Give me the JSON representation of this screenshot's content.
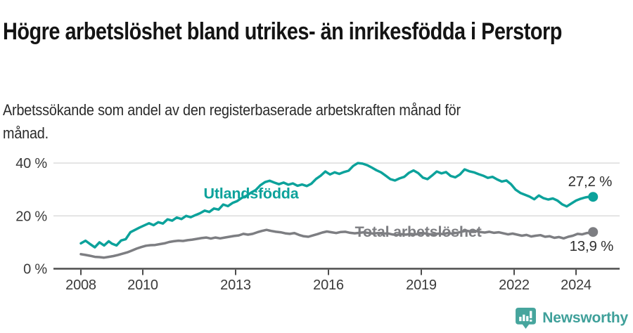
{
  "footer": {
    "brand": "Newsworthy"
  },
  "colors": {
    "foreign_born": "#0ca29b",
    "total": "#7d7e82",
    "grid": "#d9d9d9",
    "axis": "#4d4d4d",
    "axis_text": "#3a3a3a",
    "annotation_text": "#2e2e2e",
    "brand": "#3fa09a"
  },
  "chart_data": {
    "type": "line",
    "title": "Högre arbetslöshet bland utrikes- än inrikesfödda i Perstorp",
    "subtitle": "Arbetssökande som andel av den registerbaserade arbetskraften månad för månad.",
    "xlabel": "",
    "ylabel": "",
    "grid": "horizontal-only",
    "legend_position": "inline-labels",
    "x_axis_range": [
      2007.1,
      2025.4
    ],
    "y_axis_range": [
      0,
      43
    ],
    "x_ticks": [
      2008,
      2010,
      2013,
      2016,
      2019,
      2022,
      2024
    ],
    "y_ticks": [
      {
        "value": 0,
        "label": "0 %"
      },
      {
        "value": 20,
        "label": "20 %"
      },
      {
        "value": 40,
        "label": "40 %"
      }
    ],
    "series": [
      {
        "id": "utlandsfodda",
        "name": "Utlandsfödda",
        "color": "#0ca29b",
        "end_label": "27,2 %",
        "end_label_position": "above",
        "label_anchor": {
          "x": 2013.5,
          "y": 28.4
        },
        "points": [
          [
            2008.0,
            9.6
          ],
          [
            2008.15,
            10.6
          ],
          [
            2008.3,
            9.3
          ],
          [
            2008.45,
            8.1
          ],
          [
            2008.6,
            10.0
          ],
          [
            2008.75,
            8.8
          ],
          [
            2008.9,
            10.4
          ],
          [
            2009.0,
            9.5
          ],
          [
            2009.15,
            8.8
          ],
          [
            2009.3,
            10.7
          ],
          [
            2009.45,
            11.2
          ],
          [
            2009.6,
            13.8
          ],
          [
            2009.75,
            14.7
          ],
          [
            2009.9,
            15.6
          ],
          [
            2010.05,
            16.4
          ],
          [
            2010.2,
            17.2
          ],
          [
            2010.35,
            16.5
          ],
          [
            2010.5,
            17.6
          ],
          [
            2010.65,
            17.1
          ],
          [
            2010.8,
            18.7
          ],
          [
            2010.95,
            18.2
          ],
          [
            2011.1,
            19.4
          ],
          [
            2011.25,
            18.8
          ],
          [
            2011.4,
            20.0
          ],
          [
            2011.55,
            19.5
          ],
          [
            2011.7,
            20.3
          ],
          [
            2011.85,
            21.0
          ],
          [
            2012.0,
            22.0
          ],
          [
            2012.15,
            21.5
          ],
          [
            2012.3,
            22.8
          ],
          [
            2012.45,
            22.4
          ],
          [
            2012.6,
            24.3
          ],
          [
            2012.75,
            23.7
          ],
          [
            2012.9,
            24.9
          ],
          [
            2013.05,
            25.6
          ],
          [
            2013.2,
            26.8
          ],
          [
            2013.35,
            27.6
          ],
          [
            2013.5,
            28.8
          ],
          [
            2013.65,
            29.8
          ],
          [
            2013.8,
            31.6
          ],
          [
            2013.95,
            32.8
          ],
          [
            2014.1,
            33.3
          ],
          [
            2014.25,
            32.6
          ],
          [
            2014.4,
            32.0
          ],
          [
            2014.55,
            32.6
          ],
          [
            2014.7,
            31.8
          ],
          [
            2014.85,
            32.3
          ],
          [
            2015.0,
            31.4
          ],
          [
            2015.15,
            31.9
          ],
          [
            2015.3,
            31.3
          ],
          [
            2015.45,
            32.2
          ],
          [
            2015.6,
            34.0
          ],
          [
            2015.75,
            35.2
          ],
          [
            2015.9,
            36.8
          ],
          [
            2016.05,
            35.7
          ],
          [
            2016.2,
            36.5
          ],
          [
            2016.35,
            35.9
          ],
          [
            2016.5,
            36.6
          ],
          [
            2016.65,
            37.1
          ],
          [
            2016.8,
            38.9
          ],
          [
            2016.95,
            40.0
          ],
          [
            2017.1,
            39.8
          ],
          [
            2017.25,
            39.2
          ],
          [
            2017.4,
            38.3
          ],
          [
            2017.55,
            37.3
          ],
          [
            2017.7,
            36.5
          ],
          [
            2017.85,
            35.2
          ],
          [
            2018.0,
            33.9
          ],
          [
            2018.15,
            33.4
          ],
          [
            2018.3,
            34.2
          ],
          [
            2018.45,
            34.8
          ],
          [
            2018.6,
            36.3
          ],
          [
            2018.75,
            37.2
          ],
          [
            2018.9,
            36.2
          ],
          [
            2019.05,
            34.5
          ],
          [
            2019.2,
            33.9
          ],
          [
            2019.35,
            35.3
          ],
          [
            2019.5,
            36.8
          ],
          [
            2019.65,
            36.1
          ],
          [
            2019.8,
            36.6
          ],
          [
            2019.95,
            35.1
          ],
          [
            2020.1,
            34.6
          ],
          [
            2020.25,
            35.7
          ],
          [
            2020.4,
            37.6
          ],
          [
            2020.55,
            36.9
          ],
          [
            2020.7,
            36.5
          ],
          [
            2020.85,
            35.8
          ],
          [
            2021.0,
            35.2
          ],
          [
            2021.15,
            34.4
          ],
          [
            2021.3,
            34.8
          ],
          [
            2021.45,
            33.8
          ],
          [
            2021.6,
            33.0
          ],
          [
            2021.75,
            33.4
          ],
          [
            2021.9,
            32.0
          ],
          [
            2022.05,
            29.9
          ],
          [
            2022.2,
            28.7
          ],
          [
            2022.35,
            28.0
          ],
          [
            2022.5,
            27.3
          ],
          [
            2022.65,
            26.3
          ],
          [
            2022.8,
            27.7
          ],
          [
            2022.95,
            26.7
          ],
          [
            2023.1,
            26.2
          ],
          [
            2023.25,
            26.6
          ],
          [
            2023.4,
            25.8
          ],
          [
            2023.55,
            24.4
          ],
          [
            2023.7,
            23.6
          ],
          [
            2023.85,
            24.7
          ],
          [
            2024.0,
            25.8
          ],
          [
            2024.15,
            26.5
          ],
          [
            2024.3,
            27.0
          ],
          [
            2024.45,
            27.3
          ],
          [
            2024.55,
            27.2
          ]
        ]
      },
      {
        "id": "total-arbetsloshet",
        "name": "Total arbetslöshet",
        "color": "#7d7e82",
        "end_label": "13,9 %",
        "end_label_position": "below",
        "label_anchor": {
          "x": 2018.9,
          "y": 13.9
        },
        "points": [
          [
            2008.0,
            5.5
          ],
          [
            2008.15,
            5.2
          ],
          [
            2008.3,
            4.9
          ],
          [
            2008.45,
            4.5
          ],
          [
            2008.6,
            4.4
          ],
          [
            2008.75,
            4.2
          ],
          [
            2008.9,
            4.5
          ],
          [
            2009.05,
            4.8
          ],
          [
            2009.2,
            5.2
          ],
          [
            2009.35,
            5.7
          ],
          [
            2009.5,
            6.2
          ],
          [
            2009.65,
            6.9
          ],
          [
            2009.8,
            7.6
          ],
          [
            2009.95,
            8.2
          ],
          [
            2010.1,
            8.7
          ],
          [
            2010.25,
            8.9
          ],
          [
            2010.4,
            9.0
          ],
          [
            2010.55,
            9.3
          ],
          [
            2010.7,
            9.6
          ],
          [
            2010.85,
            10.1
          ],
          [
            2011.0,
            10.4
          ],
          [
            2011.15,
            10.6
          ],
          [
            2011.3,
            10.5
          ],
          [
            2011.45,
            10.8
          ],
          [
            2011.6,
            11.0
          ],
          [
            2011.75,
            11.3
          ],
          [
            2011.9,
            11.6
          ],
          [
            2012.05,
            11.8
          ],
          [
            2012.2,
            11.4
          ],
          [
            2012.35,
            11.8
          ],
          [
            2012.5,
            11.5
          ],
          [
            2012.65,
            11.8
          ],
          [
            2012.8,
            12.1
          ],
          [
            2012.95,
            12.4
          ],
          [
            2013.1,
            12.6
          ],
          [
            2013.25,
            13.2
          ],
          [
            2013.4,
            12.9
          ],
          [
            2013.55,
            13.2
          ],
          [
            2013.7,
            13.8
          ],
          [
            2013.85,
            14.3
          ],
          [
            2014.0,
            14.7
          ],
          [
            2014.15,
            14.3
          ],
          [
            2014.3,
            14.0
          ],
          [
            2014.45,
            13.8
          ],
          [
            2014.6,
            13.4
          ],
          [
            2014.75,
            13.2
          ],
          [
            2014.9,
            13.5
          ],
          [
            2015.05,
            12.8
          ],
          [
            2015.2,
            12.3
          ],
          [
            2015.35,
            12.1
          ],
          [
            2015.5,
            12.6
          ],
          [
            2015.65,
            13.1
          ],
          [
            2015.8,
            13.7
          ],
          [
            2015.95,
            14.1
          ],
          [
            2016.1,
            13.8
          ],
          [
            2016.25,
            13.5
          ],
          [
            2016.4,
            13.9
          ],
          [
            2016.55,
            14.0
          ],
          [
            2016.7,
            13.6
          ],
          [
            2016.85,
            13.4
          ],
          [
            2017.0,
            13.6
          ],
          [
            2017.15,
            13.8
          ],
          [
            2017.3,
            13.5
          ],
          [
            2017.45,
            13.3
          ],
          [
            2017.6,
            13.5
          ],
          [
            2017.75,
            13.2
          ],
          [
            2017.9,
            13.4
          ],
          [
            2018.05,
            13.0
          ],
          [
            2018.2,
            12.8
          ],
          [
            2018.35,
            13.1
          ],
          [
            2018.5,
            12.9
          ],
          [
            2018.65,
            13.2
          ],
          [
            2018.8,
            13.0
          ],
          [
            2018.95,
            13.2
          ],
          [
            2019.1,
            13.4
          ],
          [
            2019.25,
            13.1
          ],
          [
            2019.4,
            12.9
          ],
          [
            2019.55,
            13.3
          ],
          [
            2019.7,
            13.1
          ],
          [
            2019.85,
            13.5
          ],
          [
            2020.0,
            13.3
          ],
          [
            2020.15,
            13.6
          ],
          [
            2020.3,
            14.0
          ],
          [
            2020.45,
            14.4
          ],
          [
            2020.6,
            14.1
          ],
          [
            2020.75,
            14.3
          ],
          [
            2020.9,
            13.9
          ],
          [
            2021.05,
            13.7
          ],
          [
            2021.2,
            14.0
          ],
          [
            2021.35,
            13.6
          ],
          [
            2021.5,
            13.8
          ],
          [
            2021.65,
            13.4
          ],
          [
            2021.8,
            13.0
          ],
          [
            2021.95,
            13.3
          ],
          [
            2022.1,
            12.9
          ],
          [
            2022.25,
            12.5
          ],
          [
            2022.4,
            12.8
          ],
          [
            2022.55,
            12.2
          ],
          [
            2022.7,
            12.5
          ],
          [
            2022.85,
            12.7
          ],
          [
            2023.0,
            12.1
          ],
          [
            2023.15,
            12.3
          ],
          [
            2023.3,
            11.7
          ],
          [
            2023.45,
            12.0
          ],
          [
            2023.6,
            11.5
          ],
          [
            2023.75,
            12.1
          ],
          [
            2023.9,
            12.5
          ],
          [
            2024.05,
            13.2
          ],
          [
            2024.2,
            13.0
          ],
          [
            2024.35,
            13.5
          ],
          [
            2024.5,
            13.7
          ],
          [
            2024.55,
            13.9
          ]
        ]
      }
    ]
  }
}
